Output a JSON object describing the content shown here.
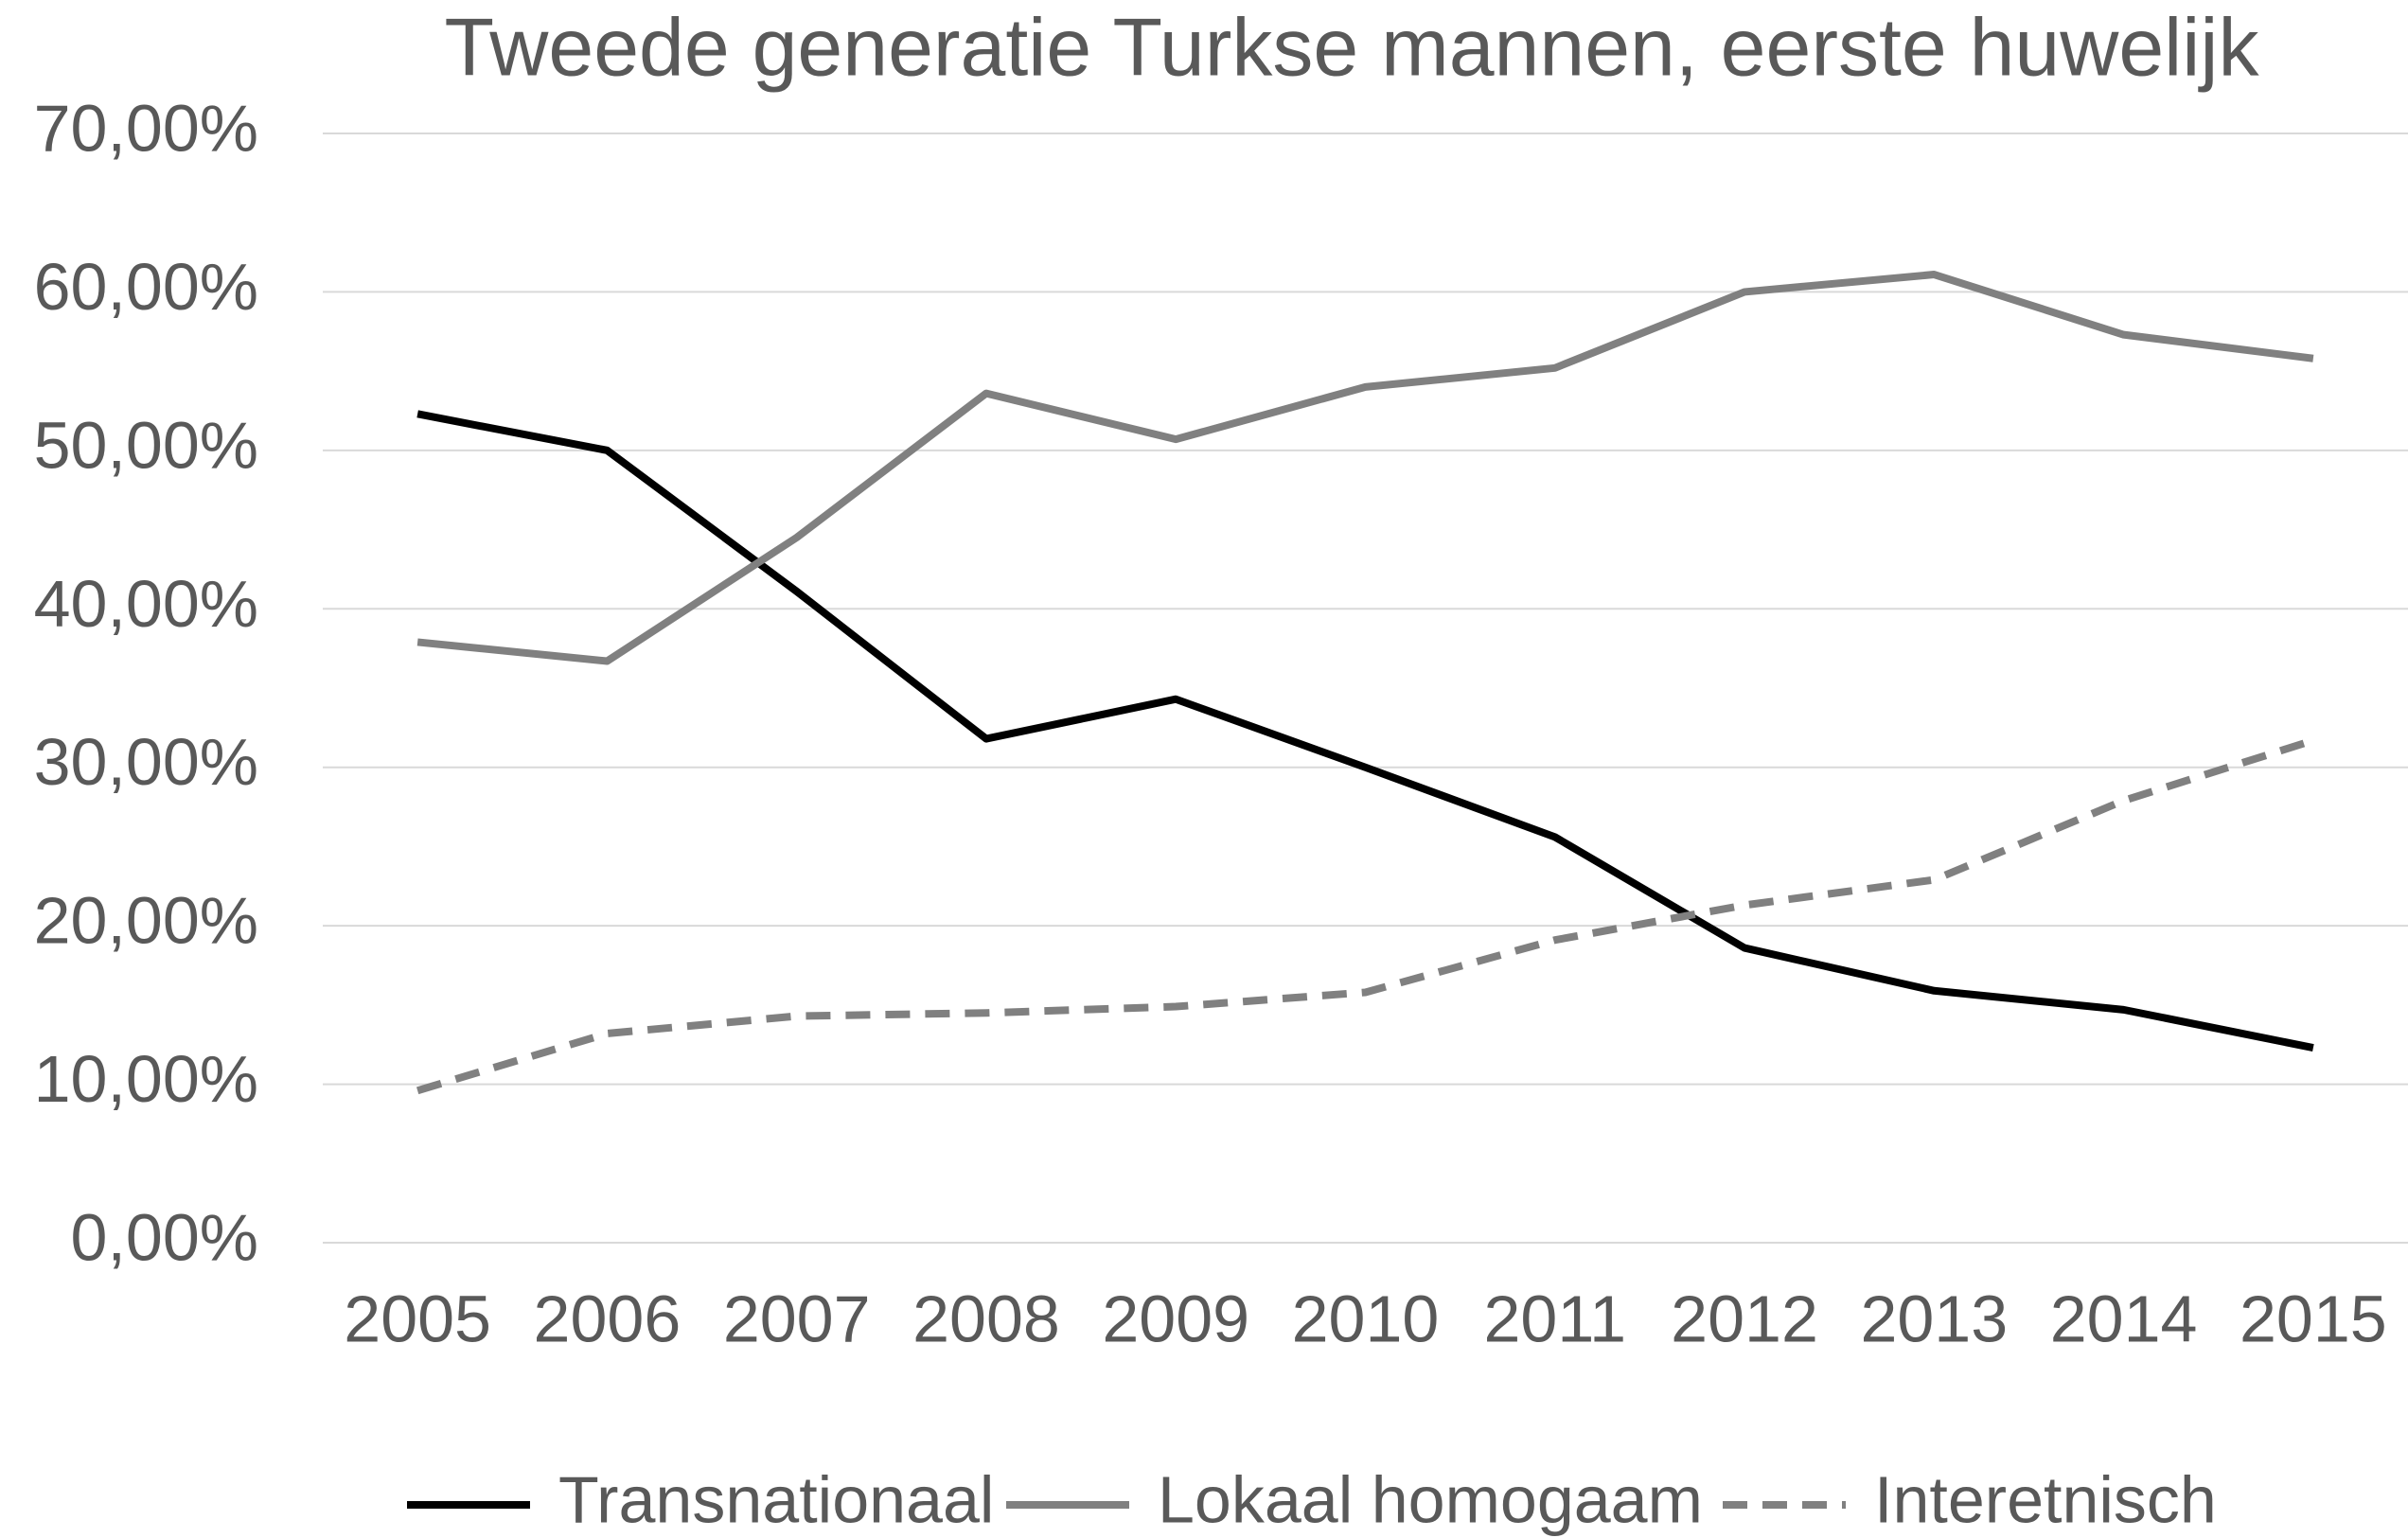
{
  "chart_data": {
    "type": "line",
    "title": "Tweede generatie Turkse mannen, eerste huwelijk",
    "categories": [
      "2005",
      "2006",
      "2007",
      "2008",
      "2009",
      "2010",
      "2011",
      "2012",
      "2013",
      "2014",
      "2015"
    ],
    "series": [
      {
        "name": "Transnationaal",
        "color": "#000000",
        "dash": false,
        "values": [
          52.3,
          50.0,
          41.1,
          31.8,
          34.3,
          30.0,
          25.6,
          18.6,
          15.9,
          14.7,
          12.3
        ]
      },
      {
        "name": "Lokaal homogaam",
        "color": "#808080",
        "dash": false,
        "values": [
          37.9,
          36.7,
          44.5,
          53.6,
          50.7,
          54.0,
          55.2,
          60.0,
          61.1,
          57.3,
          55.8
        ]
      },
      {
        "name": "Interetnisch",
        "color": "#808080",
        "dash": true,
        "values": [
          9.6,
          13.2,
          14.3,
          14.5,
          14.9,
          15.8,
          19.1,
          21.3,
          22.9,
          27.9,
          31.7
        ]
      }
    ],
    "ylim": [
      0,
      70
    ],
    "yticks": [
      {
        "value": 0,
        "label": "0,00%"
      },
      {
        "value": 10,
        "label": "10,00%"
      },
      {
        "value": 20,
        "label": "20,00%"
      },
      {
        "value": 30,
        "label": "30,00%"
      },
      {
        "value": 40,
        "label": "40,00%"
      },
      {
        "value": 50,
        "label": "50,00%"
      },
      {
        "value": 60,
        "label": "60,00%"
      },
      {
        "value": 70,
        "label": "70,00%"
      }
    ],
    "grid": true,
    "legend": "bottom"
  }
}
